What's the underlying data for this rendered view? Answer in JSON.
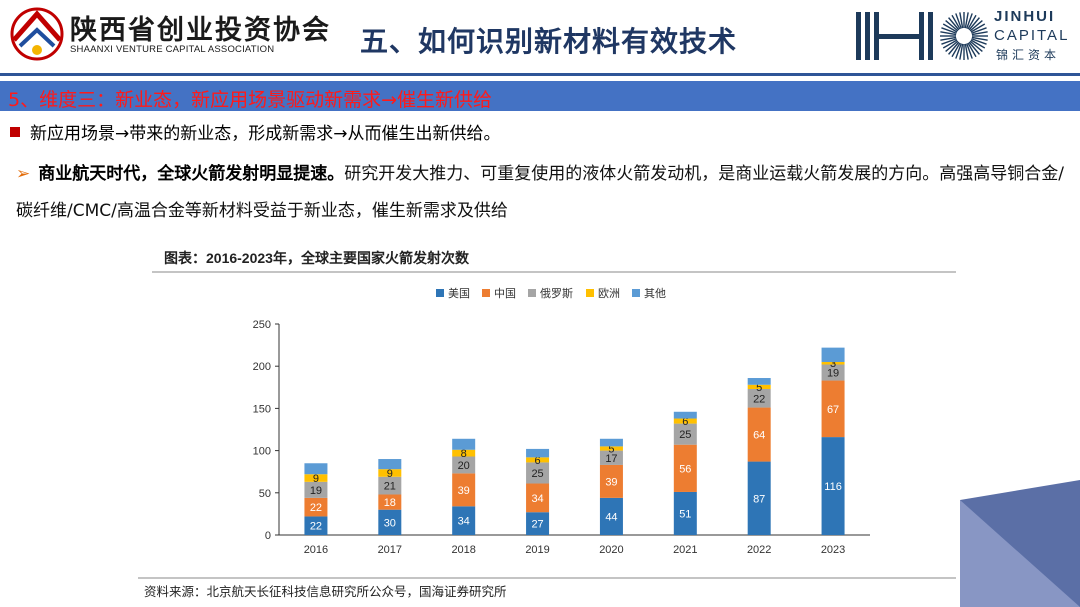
{
  "header": {
    "org_name_cn": "陕西省创业投资协会",
    "org_name_en": "SHAANXI VENTURE CAPITAL ASSOCIATION",
    "slide_title": "五、如何识别新材料有效技术",
    "brand_line1": "JINHUI",
    "brand_line2": "CAPITAL",
    "brand_cn": "锦汇资本"
  },
  "section": {
    "heading": "5、维度三：新业态，新应用场景驱动新需求→催生新供给"
  },
  "bullet": {
    "text": "新应用场景→带来的新业态，形成新需求→从而催生出新供给。"
  },
  "paragraph": {
    "arrow": "➢",
    "lead": "商业航天时代，全球火箭发射明显提速。",
    "body": "研究开发大推力、可重复使用的液体火箭发动机，是商业运载火箭发展的方向。高强高导铜合金/碳纤维/CMC/高温合金等新材料受益于新业态，催生新需求及供给"
  },
  "chart_data": {
    "type": "bar",
    "stacked": true,
    "title": "图表：2016-2023年，全球主要国家火箭发射次数",
    "source": "资料来源：北京航天长征科技信息研究所公众号，国海证券研究所",
    "categories": [
      "2016",
      "2017",
      "2018",
      "2019",
      "2020",
      "2021",
      "2022",
      "2023"
    ],
    "series": [
      {
        "name": "美国",
        "color": "#2e75b6",
        "values": [
          22,
          30,
          34,
          27,
          44,
          51,
          87,
          116
        ]
      },
      {
        "name": "中国",
        "color": "#ed7d31",
        "values": [
          22,
          18,
          39,
          34,
          39,
          56,
          64,
          67
        ]
      },
      {
        "name": "俄罗斯",
        "color": "#a5a5a5",
        "values": [
          19,
          21,
          20,
          25,
          17,
          25,
          22,
          19
        ]
      },
      {
        "name": "欧洲",
        "color": "#ffc000",
        "values": [
          9,
          9,
          8,
          6,
          5,
          6,
          5,
          3
        ]
      },
      {
        "name": "其他",
        "color": "#5b9bd5",
        "values": [
          13,
          12,
          13,
          10,
          9,
          8,
          8,
          17
        ]
      }
    ],
    "ylim": [
      0,
      250
    ],
    "yticks": [
      0,
      50,
      100,
      150,
      200,
      250
    ],
    "legend_position": "top",
    "grid": false,
    "xlabel": "",
    "ylabel": ""
  }
}
